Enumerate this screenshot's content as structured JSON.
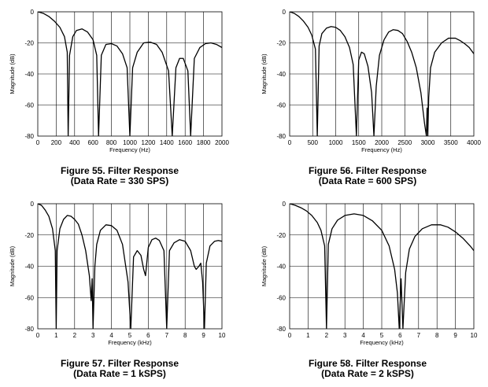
{
  "chart_data": [
    {
      "type": "line",
      "caption_line1": "Figure 55. Filter Response",
      "caption_line2": "(Data Rate = 330 SPS)",
      "xlabel": "Frequency (Hz)",
      "ylabel": "Magnitude (dB)",
      "xlim": [
        0,
        2000
      ],
      "ylim": [
        -80,
        0
      ],
      "xticks": [
        0,
        200,
        400,
        600,
        800,
        1000,
        1200,
        1400,
        1600,
        1800,
        2000
      ],
      "yticks": [
        0,
        -20,
        -40,
        -60,
        -80
      ],
      "grid": true,
      "notches": [
        330,
        660,
        1000,
        1460,
        1660
      ],
      "x": [
        0,
        60,
        120,
        180,
        240,
        290,
        320,
        330,
        345,
        380,
        420,
        480,
        540,
        600,
        640,
        660,
        690,
        740,
        800,
        860,
        920,
        970,
        1000,
        1030,
        1080,
        1150,
        1220,
        1290,
        1350,
        1420,
        1460,
        1500,
        1540,
        1580,
        1630,
        1660,
        1700,
        1760,
        1820,
        1880,
        1940,
        2000
      ],
      "y": [
        0,
        -1,
        -3,
        -6,
        -10,
        -16,
        -26,
        -80,
        -28,
        -16,
        -12,
        -11,
        -13,
        -18,
        -28,
        -80,
        -28,
        -21,
        -20.5,
        -22,
        -27,
        -36,
        -80,
        -36,
        -26,
        -20,
        -19.5,
        -21,
        -26,
        -38,
        -80,
        -36,
        -30,
        -30,
        -38,
        -80,
        -30,
        -23,
        -20.5,
        -20,
        -21,
        -23
      ]
    },
    {
      "type": "line",
      "caption_line1": "Figure 56. Filter Response",
      "caption_line2": "(Data Rate = 600 SPS)",
      "xlabel": "Frequency (Hz)",
      "ylabel": "Magnitude (dB)",
      "xlim": [
        0,
        4000
      ],
      "ylim": [
        -80,
        0
      ],
      "xticks": [
        0,
        500,
        1000,
        1500,
        2000,
        2500,
        3000,
        3500,
        4000
      ],
      "yticks": [
        0,
        -20,
        -40,
        -60,
        -80
      ],
      "grid": true,
      "notches": [
        600,
        1450,
        1830,
        2970,
        3000
      ],
      "x": [
        0,
        100,
        200,
        300,
        400,
        480,
        560,
        600,
        640,
        700,
        800,
        900,
        1000,
        1100,
        1200,
        1300,
        1380,
        1450,
        1500,
        1560,
        1620,
        1700,
        1780,
        1830,
        1880,
        1950,
        2050,
        2150,
        2250,
        2350,
        2450,
        2550,
        2650,
        2750,
        2850,
        2930,
        2970,
        2985,
        3000,
        3020,
        3060,
        3150,
        3300,
        3450,
        3600,
        3700,
        3800,
        3900,
        4000
      ],
      "y": [
        0,
        -1,
        -3,
        -6,
        -10,
        -15,
        -24,
        -80,
        -22,
        -14,
        -10.5,
        -9.5,
        -10,
        -12,
        -16,
        -23,
        -34,
        -80,
        -31,
        -26,
        -27,
        -35,
        -52,
        -80,
        -48,
        -28,
        -18,
        -13,
        -11.5,
        -12,
        -14,
        -19,
        -26,
        -36,
        -52,
        -72,
        -80,
        -62,
        -80,
        -55,
        -36,
        -26,
        -20,
        -17,
        -17,
        -18.5,
        -20.5,
        -23,
        -27
      ]
    },
    {
      "type": "line",
      "caption_line1": "Figure 57. Filter Response",
      "caption_line2": "(Data Rate = 1 kSPS)",
      "xlabel": "Frequency (kHz)",
      "ylabel": "Magnitude (dB)",
      "xlim": [
        0,
        10
      ],
      "ylim": [
        -80,
        0
      ],
      "xticks": [
        0,
        1,
        2,
        3,
        4,
        5,
        6,
        7,
        8,
        9,
        10
      ],
      "yticks": [
        0,
        -20,
        -40,
        -60,
        -80
      ],
      "grid": true,
      "notches": [
        1,
        3,
        5.05,
        5.85,
        7,
        8.6,
        9.1
      ],
      "x": [
        0,
        0.2,
        0.4,
        0.6,
        0.8,
        0.95,
        1.0,
        1.05,
        1.2,
        1.4,
        1.6,
        1.8,
        2.0,
        2.2,
        2.4,
        2.6,
        2.8,
        2.9,
        2.95,
        3.0,
        3.1,
        3.2,
        3.4,
        3.7,
        4.0,
        4.3,
        4.6,
        4.9,
        5.05,
        5.2,
        5.4,
        5.6,
        5.75,
        5.85,
        6.0,
        6.2,
        6.4,
        6.6,
        6.85,
        7.0,
        7.15,
        7.4,
        7.7,
        8.0,
        8.3,
        8.5,
        8.6,
        8.75,
        8.85,
        8.95,
        9.05,
        9.15,
        9.35,
        9.6,
        9.8,
        10.0
      ],
      "y": [
        0,
        -1,
        -4,
        -8,
        -16,
        -30,
        -80,
        -30,
        -16,
        -10,
        -7.5,
        -8,
        -10,
        -13,
        -20,
        -30,
        -46,
        -62,
        -48,
        -80,
        -40,
        -26,
        -17,
        -13.5,
        -14,
        -17,
        -26,
        -50,
        -80,
        -34,
        -30,
        -33,
        -42,
        -46,
        -28,
        -23,
        -22,
        -23.5,
        -30,
        -80,
        -30,
        -25,
        -23,
        -24,
        -30,
        -40,
        -42,
        -40,
        -38,
        -50,
        -80,
        -38,
        -27,
        -24,
        -23.5,
        -24
      ]
    },
    {
      "type": "line",
      "caption_line1": "Figure 58. Filter Response",
      "caption_line2": "(Data Rate = 2 kSPS)",
      "xlabel": "Frequency (kHz)",
      "ylabel": "Magnitude (dB)",
      "xlim": [
        0,
        10
      ],
      "ylim": [
        -80,
        0
      ],
      "xticks": [
        0,
        1,
        2,
        3,
        4,
        5,
        6,
        7,
        8,
        9,
        10
      ],
      "yticks": [
        0,
        -20,
        -40,
        -60,
        -80
      ],
      "grid": true,
      "notches": [
        2,
        5.95,
        6.15
      ],
      "x": [
        0,
        0.3,
        0.6,
        0.9,
        1.2,
        1.5,
        1.7,
        1.9,
        2.0,
        2.1,
        2.3,
        2.6,
        3.0,
        3.5,
        4.0,
        4.5,
        5.0,
        5.4,
        5.7,
        5.85,
        5.95,
        6.05,
        6.15,
        6.3,
        6.5,
        6.8,
        7.2,
        7.7,
        8.2,
        8.6,
        9.0,
        9.4,
        9.8,
        10.0
      ],
      "y": [
        0,
        -1,
        -2.5,
        -4.5,
        -7.5,
        -12,
        -17,
        -27,
        -80,
        -26,
        -16,
        -10.5,
        -7.5,
        -6.5,
        -7.5,
        -11,
        -17,
        -27,
        -42,
        -57,
        -80,
        -48,
        -80,
        -44,
        -29,
        -21,
        -16,
        -13.5,
        -13.5,
        -15,
        -18,
        -22,
        -27,
        -30
      ]
    }
  ]
}
